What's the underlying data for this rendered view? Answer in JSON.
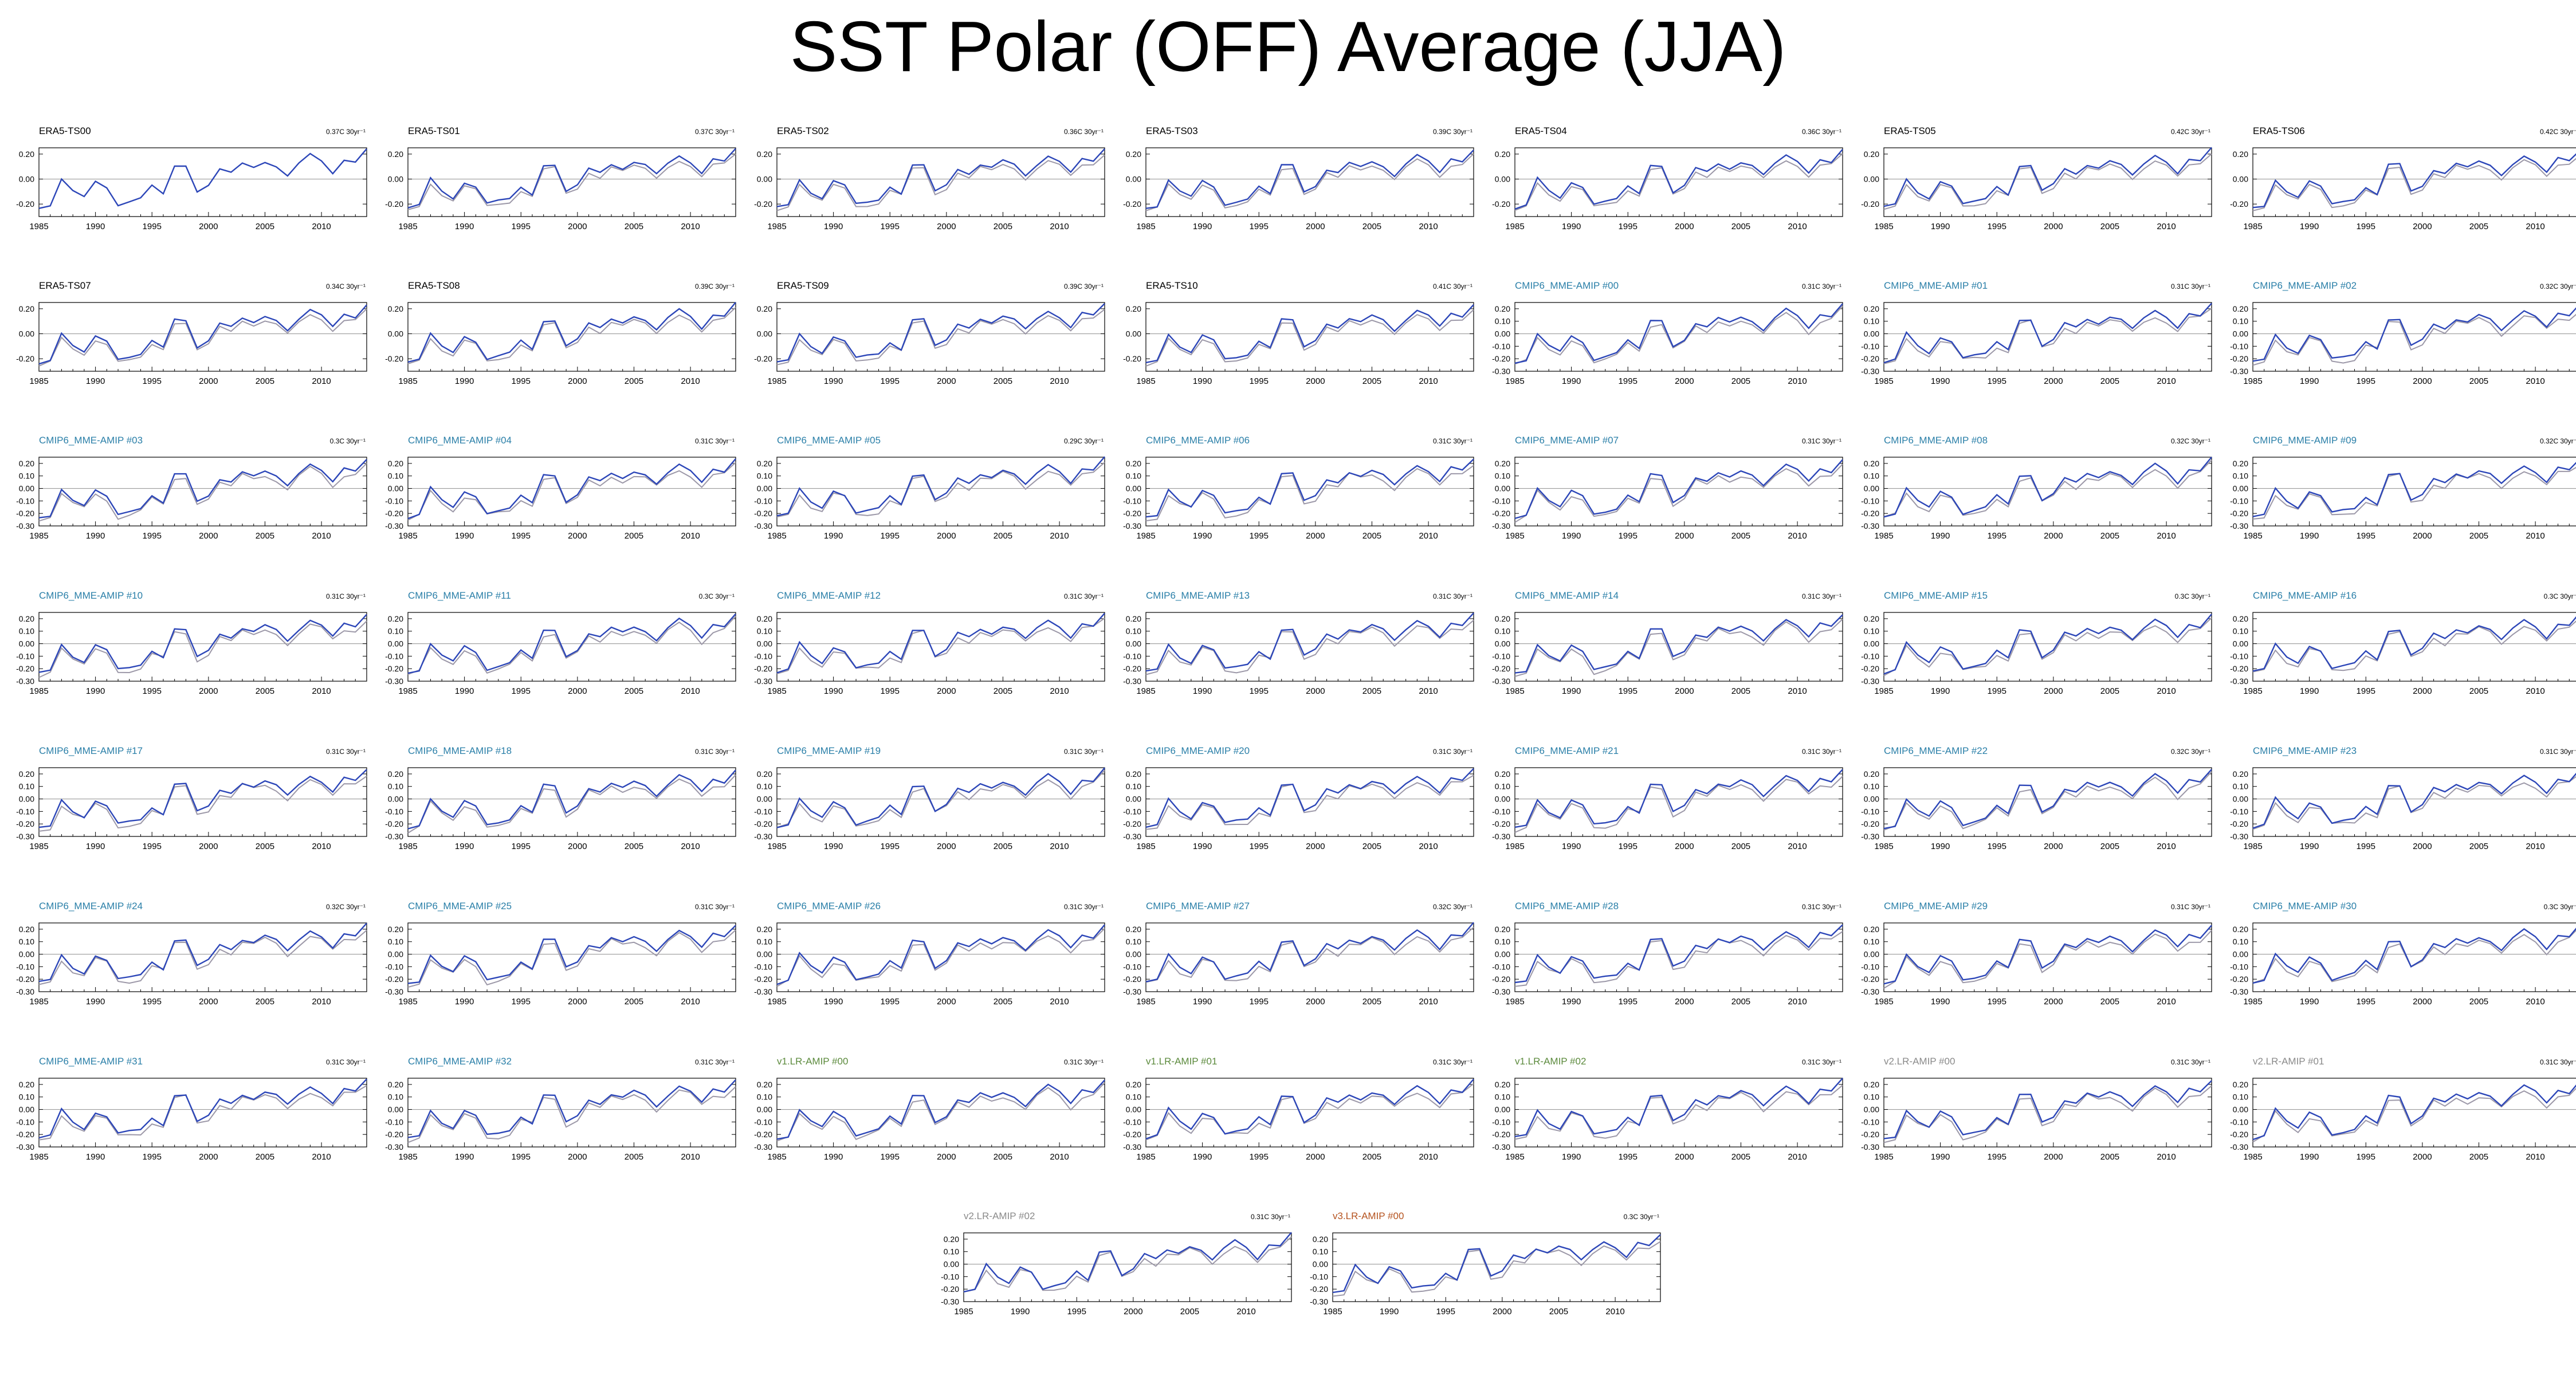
{
  "page_title": "SST Polar (OFF) Average (JJA)",
  "colors": {
    "primary_series": "#2c46b8",
    "reference_series": "#9c98a8",
    "zero_line": "#9c9c9c",
    "axis": "#000000"
  },
  "panel_titles": [
    "ERA5-TS00",
    "ERA5-TS01",
    "ERA5-TS02",
    "ERA5-TS03",
    "ERA5-TS04",
    "ERA5-TS05",
    "ERA5-TS06",
    "ERA5-TS07",
    "ERA5-TS08",
    "ERA5-TS09",
    "ERA5-TS10",
    "CMIP6_MME-AMIP  #00",
    "CMIP6_MME-AMIP  #01",
    "CMIP6_MME-AMIP  #02",
    "CMIP6_MME-AMIP  #03",
    "CMIP6_MME-AMIP  #04",
    "CMIP6_MME-AMIP  #05",
    "CMIP6_MME-AMIP  #06",
    "CMIP6_MME-AMIP  #07",
    "CMIP6_MME-AMIP  #08",
    "CMIP6_MME-AMIP  #09",
    "CMIP6_MME-AMIP  #10",
    "CMIP6_MME-AMIP  #11",
    "CMIP6_MME-AMIP  #12",
    "CMIP6_MME-AMIP  #13",
    "CMIP6_MME-AMIP  #14",
    "CMIP6_MME-AMIP  #15",
    "CMIP6_MME-AMIP  #16",
    "CMIP6_MME-AMIP  #17",
    "CMIP6_MME-AMIP  #18",
    "CMIP6_MME-AMIP  #19",
    "CMIP6_MME-AMIP  #20",
    "CMIP6_MME-AMIP  #21",
    "CMIP6_MME-AMIP  #22",
    "CMIP6_MME-AMIP  #23",
    "CMIP6_MME-AMIP  #24",
    "CMIP6_MME-AMIP  #25",
    "CMIP6_MME-AMIP  #26",
    "CMIP6_MME-AMIP  #27",
    "CMIP6_MME-AMIP  #28",
    "CMIP6_MME-AMIP  #29",
    "CMIP6_MME-AMIP  #30",
    "CMIP6_MME-AMIP  #31",
    "CMIP6_MME-AMIP  #32",
    "v1.LR-AMIP  #00",
    "v1.LR-AMIP  #01",
    "v1.LR-AMIP  #02",
    "v2.LR-AMIP  #00",
    "v2.LR-AMIP  #01",
    "v2.LR-AMIP  #02",
    "v3.LR-AMIP  #00"
  ],
  "panel_title_colors": [
    "#000000",
    "#000000",
    "#000000",
    "#000000",
    "#000000",
    "#000000",
    "#000000",
    "#000000",
    "#000000",
    "#000000",
    "#000000",
    "#2a7fa8",
    "#2a7fa8",
    "#2a7fa8",
    "#2a7fa8",
    "#2a7fa8",
    "#2a7fa8",
    "#2a7fa8",
    "#2a7fa8",
    "#2a7fa8",
    "#2a7fa8",
    "#2a7fa8",
    "#2a7fa8",
    "#2a7fa8",
    "#2a7fa8",
    "#2a7fa8",
    "#2a7fa8",
    "#2a7fa8",
    "#2a7fa8",
    "#2a7fa8",
    "#2a7fa8",
    "#2a7fa8",
    "#2a7fa8",
    "#2a7fa8",
    "#2a7fa8",
    "#2a7fa8",
    "#2a7fa8",
    "#2a7fa8",
    "#2a7fa8",
    "#2a7fa8",
    "#2a7fa8",
    "#2a7fa8",
    "#2a7fa8",
    "#2a7fa8",
    "#5b8a3c",
    "#5b8a3c",
    "#5b8a3c",
    "#8a8a8a",
    "#8a8a8a",
    "#8a8a8a",
    "#b5531f"
  ],
  "trend_labels": [
    "0.37C 30yr⁻¹",
    "0.37C 30yr⁻¹",
    "0.36C 30yr⁻¹",
    "0.39C 30yr⁻¹",
    "0.36C 30yr⁻¹",
    "0.42C 30yr⁻¹",
    "0.42C 30yr⁻¹",
    "0.34C 30yr⁻¹",
    "0.39C 30yr⁻¹",
    "0.39C 30yr⁻¹",
    "0.41C 30yr⁻¹",
    "0.31C 30yr⁻¹",
    "0.31C 30yr⁻¹",
    "0.32C 30yr⁻¹",
    "0.3C 30yr⁻¹",
    "0.31C 30yr⁻¹",
    "0.29C 30yr⁻¹",
    "0.31C 30yr⁻¹",
    "0.31C 30yr⁻¹",
    "0.32C 30yr⁻¹",
    "0.32C 30yr⁻¹",
    "0.31C 30yr⁻¹",
    "0.3C 30yr⁻¹",
    "0.31C 30yr⁻¹",
    "0.31C 30yr⁻¹",
    "0.31C 30yr⁻¹",
    "0.3C 30yr⁻¹",
    "0.3C 30yr⁻¹",
    "0.31C 30yr⁻¹",
    "0.31C 30yr⁻¹",
    "0.31C 30yr⁻¹",
    "0.31C 30yr⁻¹",
    "0.31C 30yr⁻¹",
    "0.32C 30yr⁻¹",
    "0.31C 30yr⁻¹",
    "0.32C 30yr⁻¹",
    "0.31C 30yr⁻¹",
    "0.31C 30yr⁻¹",
    "0.32C 30yr⁻¹",
    "0.31C 30yr⁻¹",
    "0.31C 30yr⁻¹",
    "0.3C 30yr⁻¹",
    "0.31C 30yr⁻¹",
    "0.31C 30yr⁻¹",
    "0.31C 30yr⁻¹",
    "0.31C 30yr⁻¹",
    "0.31C 30yr⁻¹",
    "0.31C 30yr⁻¹",
    "0.31C 30yr⁻¹",
    "0.31C 30yr⁻¹",
    "0.3C 30yr⁻¹"
  ],
  "chart_data": {
    "type": "line",
    "panel_count": 51,
    "x": [
      1985,
      1986,
      1987,
      1988,
      1989,
      1990,
      1991,
      1992,
      1993,
      1994,
      1995,
      1996,
      1997,
      1998,
      1999,
      2000,
      2001,
      2002,
      2003,
      2004,
      2005,
      2006,
      2007,
      2008,
      2009,
      2010,
      2011,
      2012,
      2013,
      2014
    ],
    "xlim": [
      1985,
      2014
    ],
    "x_ticks": [
      "1985",
      "1990",
      "1995",
      "2000",
      "2005",
      "2010"
    ],
    "ylim": [
      -0.3,
      0.25
    ],
    "y_ticks_era5": [
      "0.20",
      "0.00",
      "-0.20"
    ],
    "y_ticks_model": [
      "0.20",
      "0.10",
      "0.00",
      "-0.10",
      "-0.20",
      "-0.30"
    ],
    "series": [
      {
        "role": "panel",
        "values": [
          -0.23,
          -0.21,
          0.0,
          -0.1,
          -0.15,
          -0.02,
          -0.06,
          -0.2,
          -0.18,
          -0.16,
          -0.06,
          -0.12,
          0.11,
          0.11,
          -0.1,
          -0.05,
          0.08,
          0.05,
          0.12,
          0.09,
          0.14,
          0.11,
          0.03,
          0.12,
          0.19,
          0.14,
          0.05,
          0.16,
          0.14,
          0.24
        ]
      },
      {
        "role": "reference",
        "values": [
          -0.25,
          -0.22,
          -0.04,
          -0.13,
          -0.17,
          -0.05,
          -0.08,
          -0.22,
          -0.21,
          -0.19,
          -0.09,
          -0.13,
          0.08,
          0.09,
          -0.12,
          -0.08,
          0.05,
          0.01,
          0.1,
          0.07,
          0.11,
          0.08,
          0.0,
          0.09,
          0.15,
          0.11,
          0.02,
          0.11,
          0.12,
          0.2
        ]
      }
    ]
  }
}
